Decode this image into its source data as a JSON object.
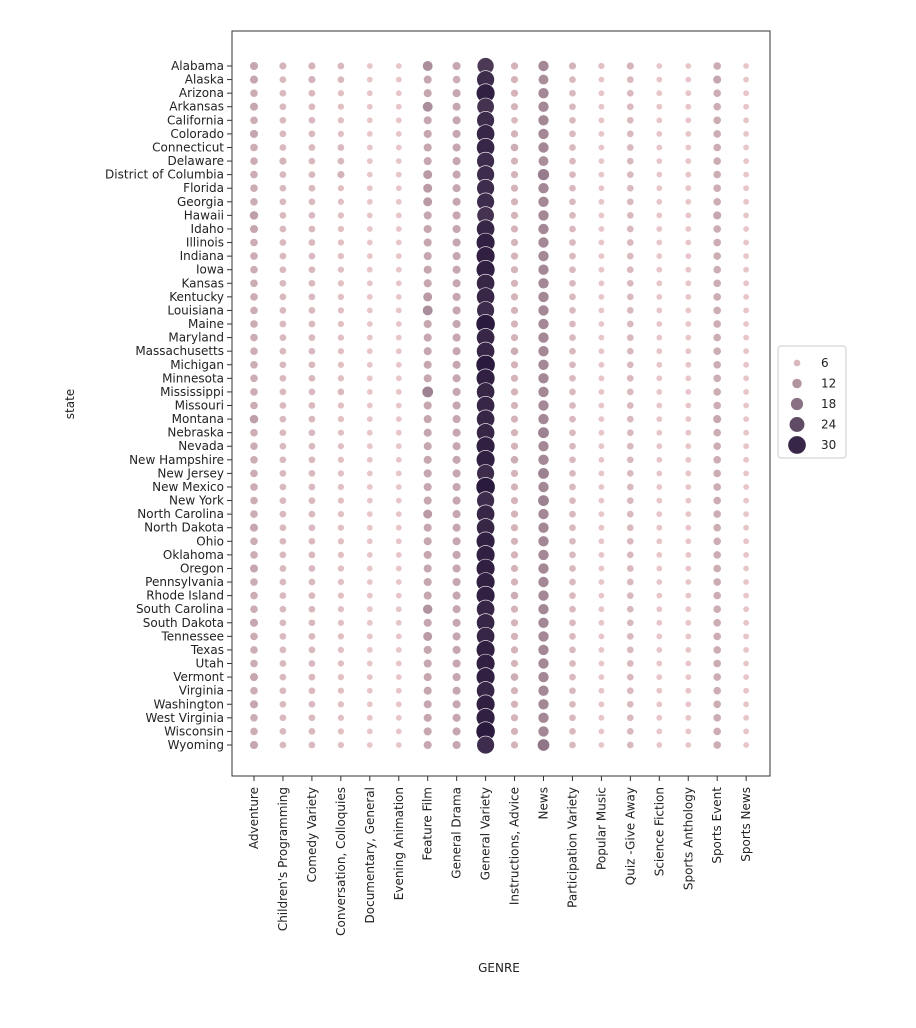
{
  "chart_data": {
    "type": "scatter",
    "title": "",
    "xlabel": "GENRE",
    "ylabel": "state",
    "grid": false,
    "legend_placement": "right",
    "legend": {
      "entries": [
        6,
        12,
        18,
        24,
        30
      ],
      "labels": [
        "6",
        "12",
        "18",
        "24",
        "30"
      ]
    },
    "color_low": "#e8c5c8",
    "color_high": "#2a1a3d",
    "genres": [
      "Adventure",
      "Children's Programming",
      "Comedy Variety",
      "Conversation, Colloquies",
      "Documentary, General",
      "Evening Animation",
      "Feature Film",
      "General Drama",
      "General Variety",
      "Instructions, Advice",
      "News",
      "Participation Variety",
      "Popular Music",
      "Quiz -Give Away",
      "Science Fiction",
      "Sports Anthology",
      "Sports Event",
      "Sports News"
    ],
    "states": [
      "Alabama",
      "Alaska",
      "Arizona",
      "Arkansas",
      "California",
      "Colorado",
      "Connecticut",
      "Delaware",
      "District of Columbia",
      "Florida",
      "Georgia",
      "Hawaii",
      "Idaho",
      "Illinois",
      "Indiana",
      "Iowa",
      "Kansas",
      "Kentucky",
      "Louisiana",
      "Maine",
      "Maryland",
      "Massachusetts",
      "Michigan",
      "Minnesota",
      "Mississippi",
      "Missouri",
      "Montana",
      "Nebraska",
      "Nevada",
      "New Hampshire",
      "New Jersey",
      "New Mexico",
      "New York",
      "North Carolina",
      "North Dakota",
      "Ohio",
      "Oklahoma",
      "Oregon",
      "Pennsylvania",
      "Rhode Island",
      "South Carolina",
      "South Dakota",
      "Tennessee",
      "Texas",
      "Utah",
      "Vermont",
      "Virginia",
      "Washington",
      "West Virginia",
      "Wisconsin",
      "Wyoming"
    ],
    "values": [
      [
        9,
        7,
        7,
        6,
        4,
        4,
        13,
        9,
        27,
        7,
        14,
        7,
        5,
        7,
        4,
        4,
        8,
        4
      ],
      [
        9,
        6,
        7,
        6,
        4,
        4,
        9,
        8,
        29,
        7,
        13,
        6,
        4,
        6,
        4,
        4,
        9,
        4
      ],
      [
        8,
        6,
        6,
        5,
        4,
        4,
        9,
        9,
        31,
        7,
        14,
        6,
        4,
        6,
        4,
        4,
        8,
        4
      ],
      [
        9,
        6,
        6,
        5,
        4,
        4,
        13,
        9,
        28,
        7,
        14,
        6,
        4,
        6,
        4,
        4,
        8,
        4
      ],
      [
        8,
        6,
        6,
        5,
        4,
        4,
        9,
        9,
        29,
        6,
        14,
        6,
        4,
        6,
        4,
        4,
        8,
        4
      ],
      [
        9,
        6,
        6,
        5,
        4,
        4,
        9,
        9,
        30,
        7,
        14,
        6,
        4,
        6,
        4,
        4,
        8,
        4
      ],
      [
        8,
        6,
        6,
        6,
        4,
        4,
        9,
        9,
        30,
        8,
        14,
        6,
        4,
        6,
        4,
        4,
        8,
        4
      ],
      [
        8,
        7,
        6,
        6,
        4,
        4,
        9,
        9,
        29,
        7,
        13,
        6,
        4,
        6,
        4,
        4,
        8,
        4
      ],
      [
        8,
        6,
        6,
        7,
        4,
        4,
        11,
        9,
        29,
        7,
        16,
        6,
        4,
        6,
        4,
        4,
        8,
        4
      ],
      [
        8,
        6,
        6,
        5,
        4,
        4,
        11,
        9,
        29,
        7,
        14,
        6,
        4,
        6,
        4,
        4,
        8,
        4
      ],
      [
        8,
        6,
        6,
        5,
        4,
        4,
        11,
        9,
        29,
        7,
        14,
        6,
        4,
        6,
        4,
        4,
        8,
        4
      ],
      [
        10,
        6,
        6,
        5,
        4,
        4,
        9,
        9,
        28,
        7,
        14,
        6,
        4,
        6,
        4,
        4,
        9,
        4
      ],
      [
        9,
        6,
        6,
        5,
        4,
        4,
        9,
        9,
        30,
        7,
        14,
        6,
        4,
        6,
        4,
        4,
        8,
        4
      ],
      [
        8,
        6,
        6,
        5,
        4,
        4,
        9,
        9,
        31,
        7,
        14,
        6,
        4,
        6,
        4,
        4,
        8,
        4
      ],
      [
        8,
        6,
        6,
        5,
        4,
        4,
        9,
        9,
        31,
        7,
        14,
        6,
        4,
        6,
        4,
        4,
        8,
        4
      ],
      [
        8,
        6,
        6,
        5,
        4,
        4,
        9,
        9,
        31,
        7,
        14,
        6,
        4,
        6,
        4,
        4,
        8,
        4
      ],
      [
        8,
        6,
        6,
        5,
        4,
        4,
        9,
        9,
        30,
        7,
        14,
        6,
        4,
        6,
        4,
        4,
        8,
        4
      ],
      [
        8,
        6,
        6,
        5,
        4,
        4,
        11,
        9,
        30,
        7,
        14,
        6,
        4,
        6,
        4,
        4,
        8,
        4
      ],
      [
        8,
        6,
        6,
        5,
        4,
        4,
        13,
        9,
        29,
        7,
        14,
        6,
        4,
        6,
        4,
        4,
        8,
        4
      ],
      [
        8,
        6,
        6,
        5,
        4,
        4,
        9,
        9,
        32,
        7,
        14,
        6,
        4,
        6,
        4,
        4,
        8,
        4
      ],
      [
        8,
        6,
        6,
        5,
        4,
        4,
        9,
        9,
        30,
        7,
        14,
        6,
        4,
        6,
        4,
        4,
        8,
        4
      ],
      [
        8,
        6,
        6,
        5,
        4,
        4,
        9,
        9,
        30,
        8,
        14,
        6,
        4,
        6,
        4,
        4,
        8,
        4
      ],
      [
        8,
        6,
        6,
        5,
        4,
        4,
        9,
        9,
        32,
        7,
        14,
        6,
        4,
        6,
        4,
        4,
        8,
        4
      ],
      [
        8,
        6,
        6,
        5,
        4,
        4,
        9,
        9,
        31,
        7,
        14,
        6,
        4,
        6,
        4,
        4,
        8,
        4
      ],
      [
        8,
        6,
        6,
        6,
        4,
        4,
        15,
        9,
        30,
        7,
        14,
        6,
        4,
        6,
        4,
        4,
        8,
        4
      ],
      [
        8,
        6,
        6,
        5,
        4,
        4,
        9,
        9,
        30,
        7,
        14,
        6,
        4,
        6,
        4,
        4,
        8,
        4
      ],
      [
        10,
        6,
        6,
        5,
        4,
        4,
        9,
        9,
        30,
        7,
        14,
        6,
        4,
        6,
        4,
        4,
        9,
        4
      ],
      [
        8,
        6,
        6,
        5,
        4,
        4,
        9,
        9,
        30,
        7,
        15,
        6,
        4,
        6,
        4,
        4,
        8,
        4
      ],
      [
        8,
        6,
        6,
        5,
        4,
        4,
        9,
        9,
        31,
        7,
        14,
        6,
        4,
        6,
        4,
        4,
        8,
        4
      ],
      [
        8,
        6,
        6,
        5,
        4,
        4,
        9,
        9,
        31,
        8,
        14,
        6,
        4,
        6,
        4,
        4,
        8,
        4
      ],
      [
        8,
        6,
        6,
        5,
        4,
        4,
        9,
        9,
        29,
        7,
        15,
        6,
        4,
        6,
        4,
        4,
        8,
        4
      ],
      [
        8,
        6,
        6,
        5,
        4,
        4,
        9,
        9,
        32,
        7,
        14,
        6,
        4,
        6,
        4,
        4,
        8,
        4
      ],
      [
        8,
        6,
        6,
        5,
        4,
        4,
        9,
        9,
        29,
        7,
        15,
        6,
        4,
        6,
        4,
        4,
        8,
        4
      ],
      [
        8,
        6,
        6,
        5,
        4,
        4,
        11,
        9,
        30,
        7,
        14,
        6,
        4,
        6,
        4,
        4,
        8,
        4
      ],
      [
        9,
        6,
        6,
        5,
        4,
        4,
        9,
        9,
        30,
        7,
        14,
        6,
        4,
        6,
        4,
        4,
        8,
        4
      ],
      [
        8,
        6,
        6,
        5,
        4,
        4,
        9,
        9,
        31,
        7,
        14,
        6,
        4,
        6,
        4,
        4,
        8,
        4
      ],
      [
        8,
        6,
        6,
        5,
        4,
        4,
        9,
        9,
        31,
        7,
        14,
        6,
        4,
        6,
        4,
        4,
        8,
        4
      ],
      [
        9,
        6,
        6,
        5,
        4,
        4,
        9,
        9,
        31,
        7,
        14,
        6,
        4,
        6,
        4,
        4,
        8,
        4
      ],
      [
        8,
        6,
        6,
        5,
        4,
        4,
        9,
        9,
        31,
        7,
        14,
        6,
        4,
        6,
        4,
        4,
        8,
        4
      ],
      [
        8,
        6,
        6,
        5,
        4,
        4,
        9,
        9,
        31,
        8,
        14,
        6,
        4,
        6,
        4,
        4,
        8,
        4
      ],
      [
        8,
        6,
        6,
        5,
        4,
        4,
        12,
        9,
        30,
        7,
        14,
        6,
        4,
        6,
        4,
        4,
        8,
        4
      ],
      [
        9,
        6,
        6,
        5,
        4,
        4,
        9,
        9,
        30,
        7,
        14,
        6,
        4,
        6,
        4,
        4,
        8,
        4
      ],
      [
        8,
        6,
        6,
        5,
        4,
        4,
        11,
        9,
        30,
        7,
        14,
        6,
        4,
        6,
        4,
        4,
        8,
        4
      ],
      [
        8,
        6,
        6,
        5,
        4,
        4,
        9,
        9,
        31,
        7,
        14,
        6,
        4,
        6,
        4,
        4,
        8,
        4
      ],
      [
        8,
        6,
        6,
        5,
        4,
        4,
        9,
        9,
        31,
        7,
        14,
        6,
        4,
        6,
        4,
        4,
        8,
        4
      ],
      [
        9,
        6,
        6,
        5,
        4,
        4,
        9,
        9,
        31,
        8,
        14,
        6,
        4,
        6,
        4,
        4,
        8,
        4
      ],
      [
        8,
        6,
        6,
        5,
        4,
        4,
        9,
        9,
        30,
        7,
        14,
        6,
        4,
        6,
        4,
        4,
        8,
        4
      ],
      [
        9,
        6,
        6,
        5,
        4,
        4,
        9,
        9,
        31,
        7,
        14,
        6,
        4,
        6,
        4,
        4,
        8,
        4
      ],
      [
        8,
        6,
        6,
        5,
        4,
        4,
        9,
        9,
        31,
        7,
        14,
        6,
        4,
        6,
        4,
        4,
        8,
        4
      ],
      [
        8,
        6,
        6,
        5,
        4,
        4,
        9,
        9,
        32,
        7,
        14,
        6,
        4,
        6,
        4,
        4,
        8,
        4
      ],
      [
        9,
        6,
        6,
        5,
        4,
        4,
        9,
        9,
        29,
        7,
        17,
        6,
        4,
        6,
        4,
        4,
        8,
        4
      ]
    ]
  }
}
